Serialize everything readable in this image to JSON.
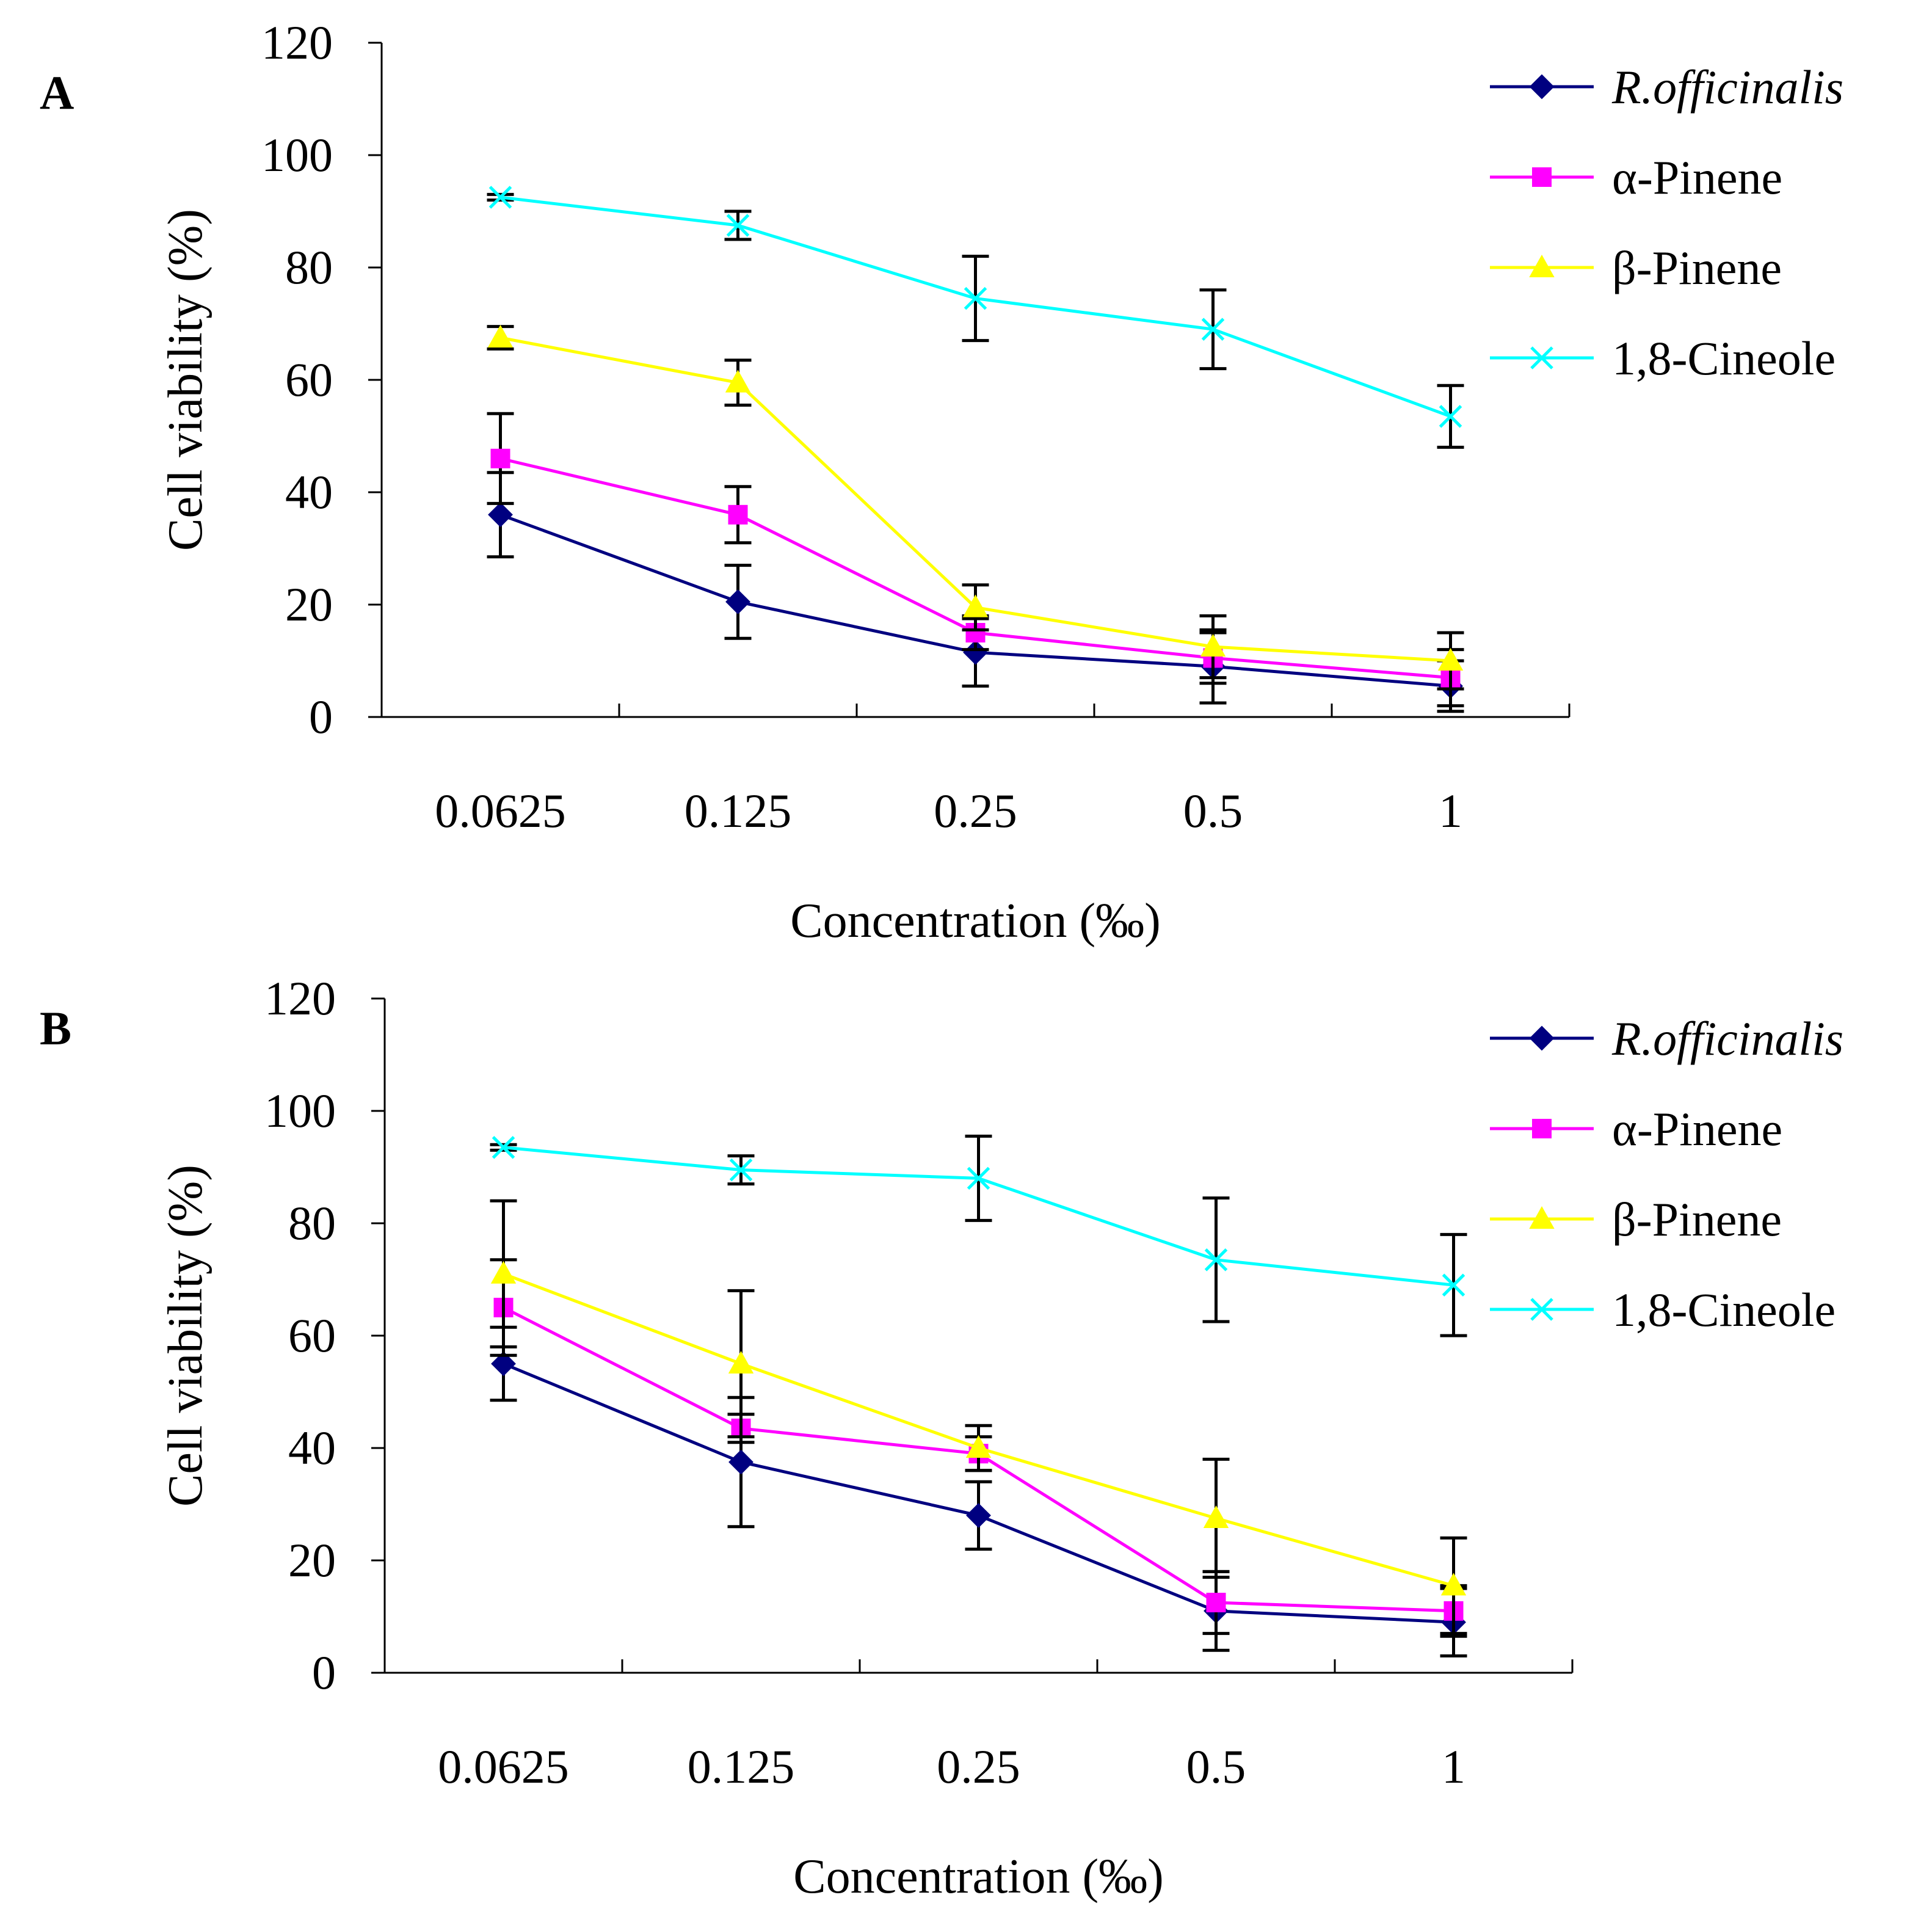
{
  "colors": {
    "axis": "#000000",
    "series": [
      "#000080",
      "#FF00FF",
      "#FFFF00",
      "#00FFFF"
    ],
    "error_bar": "#000000"
  },
  "chart_data": [
    {
      "panel_label": "A",
      "type": "line",
      "categories": [
        "0.0625",
        "0.125",
        "0.25",
        "0.5",
        "1"
      ],
      "xlabel": "Concentration (‰)",
      "ylabel": "Cell viability (%)",
      "ylim": [
        0,
        120
      ],
      "yticks": [
        0,
        20,
        40,
        60,
        80,
        100,
        120
      ],
      "grid": false,
      "legend_position": "top-right",
      "series": [
        {
          "name": "R.officinalis",
          "italic": true,
          "marker": "diamond",
          "values": [
            36,
            20.5,
            11.5,
            9,
            5.5
          ],
          "errors": [
            7.5,
            6.5,
            6,
            6.5,
            4.5
          ]
        },
        {
          "name": "α-Pinene",
          "italic": false,
          "marker": "square",
          "values": [
            46,
            36,
            15,
            10.5,
            7
          ],
          "errors": [
            8,
            5,
            3,
            4.5,
            5
          ]
        },
        {
          "name": "β-Pinene",
          "italic": false,
          "marker": "triangle",
          "values": [
            67.5,
            59.5,
            19.5,
            12.5,
            10
          ],
          "errors": [
            2,
            4,
            4,
            5.5,
            5
          ]
        },
        {
          "name": "1,8-Cineole",
          "italic": false,
          "marker": "x",
          "values": [
            92.5,
            87.5,
            74.5,
            69,
            53.5
          ],
          "errors": [
            0.5,
            2.5,
            7.5,
            7,
            5.5
          ]
        }
      ]
    },
    {
      "panel_label": "B",
      "type": "line",
      "categories": [
        "0.0625",
        "0.125",
        "0.25",
        "0.5",
        "1"
      ],
      "xlabel": "Concentration (‰)",
      "ylabel": "Cell viability (%)",
      "ylim": [
        0,
        120
      ],
      "yticks": [
        0,
        20,
        40,
        60,
        80,
        100,
        120
      ],
      "grid": false,
      "legend_position": "top-right",
      "series": [
        {
          "name": "R.officinalis",
          "italic": true,
          "marker": "diamond",
          "values": [
            55,
            37.5,
            28,
            11,
            9
          ],
          "errors": [
            6.5,
            11.5,
            6,
            7,
            6
          ]
        },
        {
          "name": "α-Pinene",
          "italic": false,
          "marker": "square",
          "values": [
            65,
            43.5,
            39,
            12.5,
            11
          ],
          "errors": [
            8.5,
            2.5,
            3,
            5.5,
            4.5
          ]
        },
        {
          "name": "β-Pinene",
          "italic": false,
          "marker": "triangle",
          "values": [
            71,
            55,
            40,
            27.5,
            15.5
          ],
          "errors": [
            13,
            13,
            4,
            10.5,
            8.5
          ]
        },
        {
          "name": "1,8-Cineole",
          "italic": false,
          "marker": "x",
          "values": [
            93.5,
            89.5,
            88,
            73.5,
            69
          ],
          "errors": [
            0.5,
            2.5,
            7.5,
            11,
            9
          ]
        }
      ]
    }
  ]
}
